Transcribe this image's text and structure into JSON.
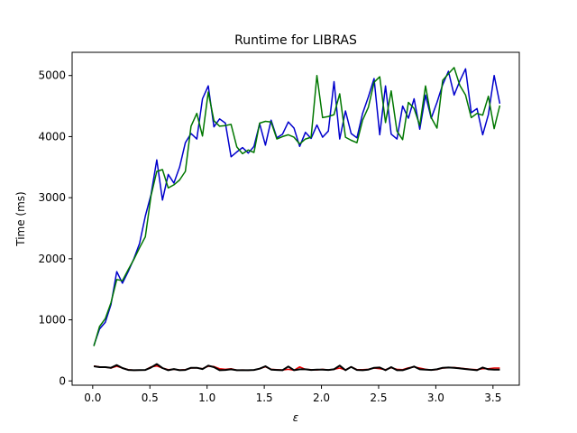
{
  "chart_data": {
    "type": "line",
    "title": "Runtime for LIBRAS",
    "xlabel": "ε",
    "ylabel": "Time (ms)",
    "xlim": [
      -0.18,
      3.73
    ],
    "ylim": [
      -70,
      5380
    ],
    "grid": false,
    "x_ticks": [
      0.0,
      0.5,
      1.0,
      1.5,
      2.0,
      2.5,
      3.0,
      3.5
    ],
    "x_tick_labels": [
      "0.0",
      "0.5",
      "1.0",
      "1.5",
      "2.0",
      "2.5",
      "3.0",
      "3.5"
    ],
    "y_ticks": [
      0,
      1000,
      2000,
      3000,
      4000,
      5000
    ],
    "y_tick_labels": [
      "0",
      "1000",
      "2000",
      "3000",
      "4000",
      "5000"
    ],
    "x": [
      0.01,
      0.06,
      0.11,
      0.16,
      0.21,
      0.26,
      0.31,
      0.36,
      0.41,
      0.46,
      0.51,
      0.56,
      0.61,
      0.66,
      0.71,
      0.76,
      0.81,
      0.86,
      0.91,
      0.96,
      1.01,
      1.06,
      1.11,
      1.16,
      1.21,
      1.26,
      1.31,
      1.36,
      1.41,
      1.46,
      1.51,
      1.56,
      1.61,
      1.66,
      1.71,
      1.76,
      1.81,
      1.86,
      1.91,
      1.96,
      2.01,
      2.06,
      2.11,
      2.16,
      2.21,
      2.26,
      2.31,
      2.36,
      2.41,
      2.46,
      2.51,
      2.56,
      2.61,
      2.66,
      2.71,
      2.76,
      2.81,
      2.86,
      2.91,
      2.96,
      3.01,
      3.06,
      3.11,
      3.16,
      3.21,
      3.26,
      3.31,
      3.36,
      3.41,
      3.46,
      3.51,
      3.56
    ],
    "series": [
      {
        "color": "#0000cc",
        "values": [
          580,
          850,
          960,
          1250,
          1790,
          1600,
          1790,
          2000,
          2250,
          2700,
          3050,
          3620,
          2960,
          3380,
          3240,
          3500,
          3900,
          4050,
          3960,
          4620,
          4830,
          4160,
          4290,
          4220,
          3670,
          3750,
          3820,
          3730,
          3840,
          4210,
          3860,
          4270,
          3980,
          4040,
          4240,
          4140,
          3840,
          4070,
          3970,
          4190,
          3990,
          4090,
          4900,
          3960,
          4420,
          4050,
          3980,
          4380,
          4650,
          4950,
          4030,
          4830,
          4040,
          3960,
          4500,
          4300,
          4620,
          4120,
          4680,
          4300,
          4560,
          4850,
          5070,
          4680,
          4910,
          5110,
          4390,
          4460,
          4030,
          4360,
          5000,
          4540
        ],
        "line_width": 1.5
      },
      {
        "color": "#007700",
        "values": [
          570,
          890,
          1020,
          1280,
          1660,
          1640,
          1820,
          1990,
          2180,
          2360,
          3030,
          3430,
          3460,
          3160,
          3210,
          3290,
          3430,
          4170,
          4380,
          4010,
          4730,
          4260,
          4170,
          4180,
          4200,
          3830,
          3720,
          3780,
          3740,
          4220,
          4250,
          4240,
          3960,
          4000,
          4030,
          3990,
          3880,
          3960,
          3990,
          5000,
          4310,
          4330,
          4360,
          4700,
          3990,
          3940,
          3900,
          4270,
          4480,
          4890,
          4980,
          4230,
          4750,
          4090,
          3950,
          4560,
          4460,
          4180,
          4830,
          4310,
          4140,
          4920,
          5030,
          5130,
          4840,
          4680,
          4310,
          4380,
          4350,
          4660,
          4130,
          4510
        ],
        "line_width": 1.5
      },
      {
        "color": "#ee0000",
        "values": [
          245,
          232,
          225,
          210,
          240,
          210,
          185,
          175,
          178,
          180,
          230,
          245,
          210,
          185,
          190,
          180,
          185,
          210,
          215,
          200,
          240,
          235,
          200,
          190,
          200,
          175,
          180,
          175,
          180,
          200,
          230,
          190,
          185,
          180,
          190,
          175,
          230,
          190,
          185,
          180,
          190,
          180,
          190,
          210,
          180,
          230,
          185,
          185,
          190,
          210,
          200,
          185,
          215,
          190,
          185,
          215,
          230,
          210,
          190,
          180,
          185,
          210,
          215,
          220,
          210,
          200,
          190,
          185,
          200,
          200,
          210,
          210
        ],
        "line_width": 1.5
      },
      {
        "color": "#000000",
        "values": [
          240,
          225,
          225,
          215,
          260,
          210,
          180,
          175,
          178,
          180,
          220,
          275,
          210,
          175,
          195,
          175,
          180,
          215,
          215,
          195,
          250,
          225,
          175,
          180,
          190,
          175,
          175,
          175,
          180,
          200,
          240,
          185,
          180,
          175,
          235,
          175,
          190,
          190,
          180,
          185,
          185,
          180,
          190,
          250,
          175,
          230,
          180,
          175,
          185,
          215,
          220,
          175,
          225,
          175,
          175,
          205,
          235,
          190,
          185,
          180,
          190,
          215,
          220,
          215,
          205,
          195,
          185,
          175,
          220,
          190,
          185,
          185
        ],
        "line_width": 2
      }
    ]
  }
}
